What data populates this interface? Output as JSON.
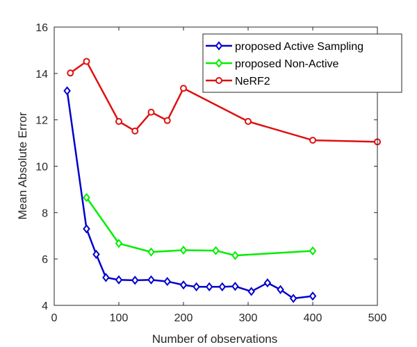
{
  "chart_data": {
    "type": "line",
    "title": "",
    "xlabel": "Number of observations",
    "ylabel": "Mean Absolute Error",
    "xlim": [
      0,
      500
    ],
    "ylim": [
      4,
      16
    ],
    "xticks": [
      0,
      100,
      200,
      300,
      400,
      500
    ],
    "yticks": [
      4,
      6,
      8,
      10,
      12,
      14,
      16
    ],
    "grid": false,
    "legend_position": "top-right",
    "series": [
      {
        "name": "proposed Active Sampling",
        "color": "#0000cc",
        "marker": "diamond",
        "x": [
          20,
          50,
          65,
          80,
          100,
          125,
          150,
          175,
          200,
          220,
          240,
          260,
          280,
          305,
          330,
          350,
          370,
          400
        ],
        "y": [
          13.25,
          7.3,
          6.2,
          5.2,
          5.1,
          5.08,
          5.1,
          5.03,
          4.88,
          4.8,
          4.8,
          4.8,
          4.82,
          4.6,
          4.97,
          4.68,
          4.3,
          4.4
        ]
      },
      {
        "name": "proposed Non-Active",
        "color": "#00ee00",
        "marker": "diamond",
        "x": [
          50,
          100,
          150,
          200,
          250,
          280,
          400
        ],
        "y": [
          8.65,
          6.67,
          6.3,
          6.38,
          6.36,
          6.15,
          6.35
        ]
      },
      {
        "name": "NeRF2",
        "color": "#dd1111",
        "marker": "circle",
        "x": [
          25,
          50,
          100,
          125,
          150,
          175,
          200,
          300,
          400,
          500
        ],
        "y": [
          14.02,
          14.52,
          11.93,
          11.52,
          12.33,
          11.97,
          13.36,
          11.93,
          11.12,
          11.05
        ]
      }
    ]
  }
}
